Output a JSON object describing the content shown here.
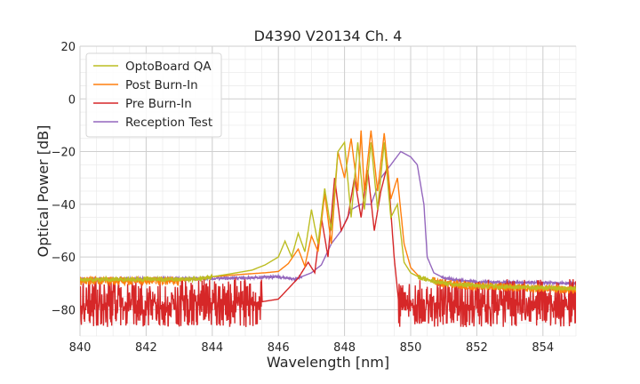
{
  "chart_data": {
    "type": "line",
    "title": "D4390 V20134 Ch. 4",
    "xlabel": "Wavelength [nm]",
    "ylabel": "Optical Power [dB]",
    "xlim": [
      840,
      855
    ],
    "ylim": [
      -90,
      20
    ],
    "x_ticks": [
      840,
      842,
      844,
      846,
      848,
      850,
      852,
      854
    ],
    "x_tick_labels": [
      "840",
      "842",
      "844",
      "846",
      "848",
      "850",
      "852",
      "854"
    ],
    "y_ticks": [
      20,
      0,
      -20,
      -40,
      -60,
      -80
    ],
    "y_tick_labels": [
      "20",
      "0",
      "−20",
      "−40",
      "−60",
      "−80"
    ],
    "grid": true,
    "minor_grid": true,
    "legend_position": "top-left",
    "series": [
      {
        "name": "OptoBoard QA",
        "color": "#bcbd22",
        "noise_floor": -68.5,
        "noise_amplitude": 0.8,
        "x": [
          840,
          843.5,
          844.5,
          845.2,
          845.6,
          846.0,
          846.2,
          846.4,
          846.6,
          846.8,
          847.0,
          847.2,
          847.4,
          847.6,
          847.8,
          848.0,
          848.2,
          848.4,
          848.6,
          848.8,
          849.0,
          849.2,
          849.4,
          849.6,
          849.8,
          850.0,
          850.3,
          851.0,
          852.0,
          855.0
        ],
        "y": [
          -68.5,
          -68.5,
          -66.5,
          -65.0,
          -63.0,
          -60.0,
          -54.0,
          -60.0,
          -51.0,
          -58.0,
          -42.0,
          -55.0,
          -34.0,
          -50.0,
          -20.0,
          -16.5,
          -45.0,
          -16.5,
          -42.0,
          -16.5,
          -42.0,
          -16.5,
          -45.0,
          -40.0,
          -62.0,
          -66.0,
          -68.0,
          -70.0,
          -71.0,
          -72.0
        ]
      },
      {
        "name": "Post Burn-In",
        "color": "#ff7f0e",
        "noise_floor": -70.0,
        "noise_amplitude": 1.5,
        "x": [
          840,
          843.0,
          844.0,
          845.0,
          845.6,
          846.0,
          846.3,
          846.6,
          846.8,
          847.0,
          847.2,
          847.4,
          847.6,
          847.8,
          848.0,
          848.2,
          848.4,
          848.5,
          848.6,
          848.8,
          849.0,
          849.2,
          849.4,
          849.6,
          849.8,
          850.0,
          850.3,
          851.0,
          852.0,
          855.0
        ],
        "y": [
          -69.0,
          -69.0,
          -67.5,
          -66.5,
          -66.0,
          -65.5,
          -62.5,
          -57.0,
          -63.5,
          -52.0,
          -58.0,
          -36.0,
          -55.0,
          -20.0,
          -30.0,
          -15.0,
          -35.0,
          -12.0,
          -35.0,
          -12.0,
          -35.0,
          -13.0,
          -38.0,
          -30.0,
          -55.0,
          -64.0,
          -68.0,
          -70.0,
          -71.0,
          -72.5
        ]
      },
      {
        "name": "Pre Burn-In",
        "color": "#d62728",
        "noise_floor": -78.0,
        "noise_amplitude": 12.0,
        "x": [
          840,
          844.0,
          845.0,
          846.0,
          846.6,
          846.9,
          847.1,
          847.3,
          847.5,
          847.7,
          847.9,
          848.1,
          848.3,
          848.5,
          848.7,
          848.9,
          849.1,
          849.3,
          849.5,
          849.7,
          849.9,
          850.0,
          851.0,
          855.0
        ],
        "y": [
          -78.0,
          -78.0,
          -78.0,
          -76.0,
          -68.0,
          -62.0,
          -66.0,
          -45.0,
          -60.0,
          -30.0,
          -50.0,
          -45.0,
          -30.0,
          -45.0,
          -27.0,
          -50.0,
          -35.0,
          -25.0,
          -60.0,
          -85.0,
          -88.0,
          -80.0,
          -80.0,
          -80.0
        ]
      },
      {
        "name": "Reception Test",
        "color": "#9467bd",
        "noise_floor": -68.5,
        "noise_amplitude": 0.5,
        "x": [
          840,
          845.0,
          846.0,
          846.5,
          847.0,
          847.3,
          847.6,
          847.9,
          848.2,
          848.5,
          848.8,
          849.1,
          849.4,
          849.7,
          850.0,
          850.2,
          850.4,
          850.5,
          850.7,
          851.0,
          852.0,
          855.0
        ],
        "y": [
          -68.5,
          -68.0,
          -67.5,
          -68.5,
          -66.0,
          -63.0,
          -55.0,
          -50.0,
          -42.0,
          -40.0,
          -40.0,
          -30.0,
          -25.0,
          -20.0,
          -22.0,
          -25.0,
          -40.0,
          -60.0,
          -66.0,
          -68.0,
          -69.5,
          -70.0
        ]
      }
    ]
  }
}
